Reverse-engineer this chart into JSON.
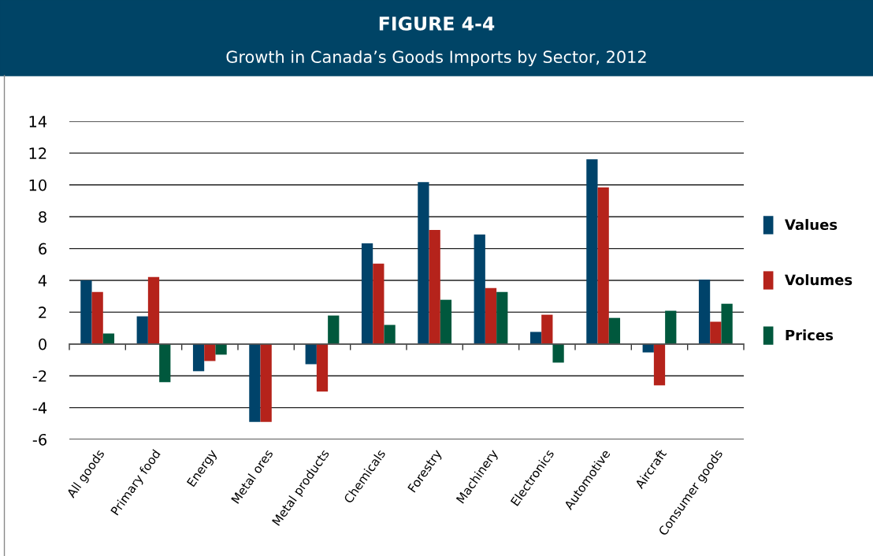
{
  "chart_data": {
    "type": "bar",
    "title": "FIGURE 4-4",
    "subtitle": "Growth in Canada’s Goods Imports by Sector, 2012",
    "categories": [
      "All goods",
      "Primary food",
      "Energy",
      "Metal ores",
      "Metal products",
      "Chemicals",
      "Forestry",
      "Machinery",
      "Electronics",
      "Automotive",
      "Aircraft",
      "Consumer goods"
    ],
    "series": [
      {
        "name": "Values",
        "color": "#00436a",
        "values": [
          4.0,
          1.74,
          -1.71,
          -4.9,
          -1.27,
          6.33,
          10.18,
          6.88,
          0.76,
          11.61,
          -0.53,
          4.05
        ]
      },
      {
        "name": "Volumes",
        "color": "#b5231b",
        "values": [
          3.27,
          4.21,
          -1.07,
          -4.9,
          -2.99,
          5.05,
          7.17,
          3.52,
          1.84,
          9.84,
          -2.6,
          1.4
        ]
      },
      {
        "name": "Prices",
        "color": "#00583d",
        "values": [
          0.66,
          -2.4,
          -0.67,
          0,
          1.79,
          1.2,
          2.78,
          3.27,
          -1.17,
          1.64,
          2.09,
          2.53
        ]
      }
    ],
    "ylim": [
      -6,
      14
    ],
    "yticks": [
      -6,
      -4,
      -2,
      0,
      2,
      4,
      6,
      8,
      10,
      12,
      14
    ],
    "grid": "y",
    "legend": "right"
  }
}
